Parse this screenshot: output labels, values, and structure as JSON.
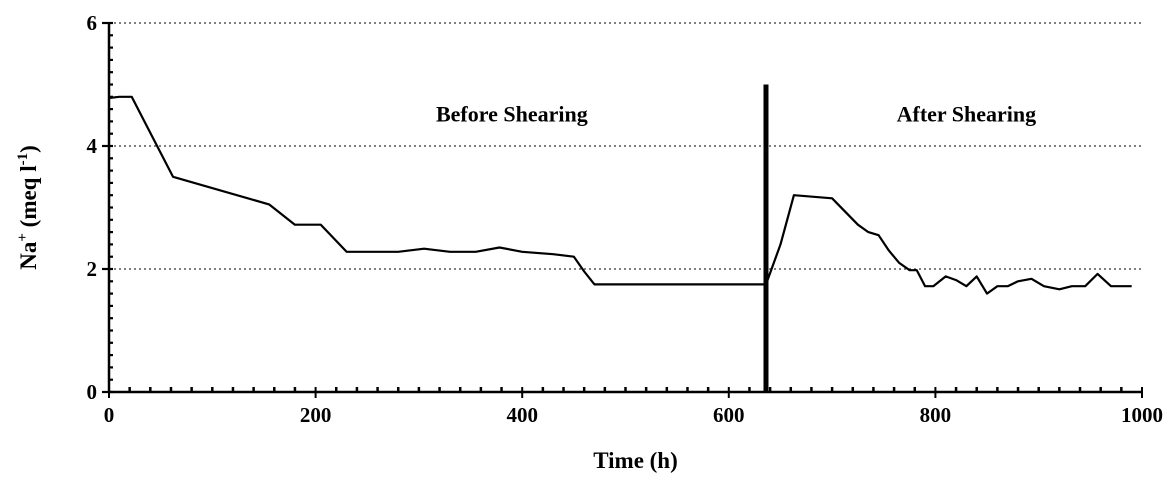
{
  "chart_data": {
    "type": "line",
    "title": "",
    "xlabel": "Time (h)",
    "ylabel_main": "Na",
    "ylabel_sup1": "+",
    "ylabel_mid": " (meq l",
    "ylabel_sup2": "-1",
    "ylabel_end": ")",
    "xlim": [
      0,
      1000
    ],
    "ylim": [
      0,
      6
    ],
    "x_ticks": [
      0,
      200,
      400,
      600,
      800,
      1000
    ],
    "y_ticks": [
      0,
      2,
      4,
      6
    ],
    "gridlines_y": [
      2,
      4,
      6
    ],
    "grid": "horizontal dotted",
    "colors": {
      "line": "#000000",
      "grid": "#555555"
    },
    "divider": {
      "x": 636,
      "y_top": 5.0
    },
    "annotations": [
      {
        "text": "Before Shearing",
        "x": 390,
        "y": 4.4
      },
      {
        "text": "After Shearing",
        "x": 830,
        "y": 4.4
      }
    ],
    "series": [
      {
        "values": [
          [
            0,
            4.78
          ],
          [
            10,
            4.8
          ],
          [
            22,
            4.8
          ],
          [
            62,
            3.5
          ],
          [
            155,
            3.05
          ],
          [
            180,
            2.72
          ],
          [
            205,
            2.72
          ],
          [
            230,
            2.28
          ],
          [
            280,
            2.28
          ],
          [
            305,
            2.33
          ],
          [
            330,
            2.28
          ],
          [
            355,
            2.28
          ],
          [
            378,
            2.35
          ],
          [
            400,
            2.28
          ],
          [
            430,
            2.24
          ],
          [
            450,
            2.2
          ],
          [
            460,
            1.96
          ],
          [
            470,
            1.75
          ],
          [
            636,
            1.75
          ],
          [
            650,
            2.4
          ],
          [
            663,
            3.2
          ],
          [
            700,
            3.15
          ],
          [
            725,
            2.72
          ],
          [
            735,
            2.6
          ],
          [
            745,
            2.55
          ],
          [
            755,
            2.3
          ],
          [
            765,
            2.1
          ],
          [
            775,
            1.98
          ],
          [
            782,
            1.98
          ],
          [
            790,
            1.72
          ],
          [
            798,
            1.72
          ],
          [
            810,
            1.88
          ],
          [
            820,
            1.82
          ],
          [
            830,
            1.72
          ],
          [
            840,
            1.88
          ],
          [
            850,
            1.6
          ],
          [
            860,
            1.72
          ],
          [
            870,
            1.72
          ],
          [
            880,
            1.8
          ],
          [
            893,
            1.84
          ],
          [
            905,
            1.72
          ],
          [
            920,
            1.67
          ],
          [
            932,
            1.72
          ],
          [
            945,
            1.72
          ],
          [
            957,
            1.92
          ],
          [
            970,
            1.72
          ],
          [
            982,
            1.72
          ],
          [
            990,
            1.72
          ]
        ]
      }
    ]
  }
}
